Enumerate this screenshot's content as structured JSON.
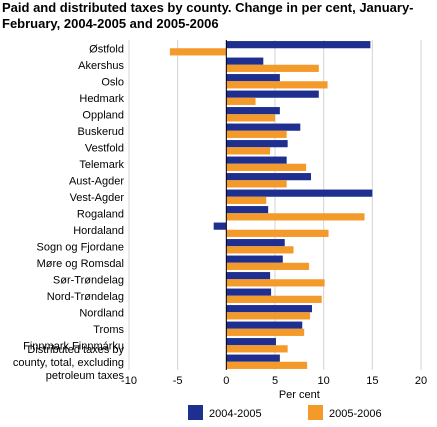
{
  "chart_data": {
    "type": "bar",
    "orientation": "horizontal",
    "title": "Paid and distributed taxes by county. Change in per cent, January-February, 2004-2005 and 2005-2006",
    "xlabel": "Per cent",
    "ylabel": "",
    "xlim": [
      -10,
      20
    ],
    "xticks": [
      -10,
      -5,
      0,
      5,
      10,
      15,
      20
    ],
    "grid": true,
    "legend_position": "bottom",
    "categories": [
      "Østfold",
      "Akershus",
      "Oslo",
      "Hedmark",
      "Oppland",
      "Buskerud",
      "Vestfold",
      "Telemark",
      "Aust-Agder",
      "Vest-Agder",
      "Rogaland",
      "Hordaland",
      "Sogn og Fjordane",
      "Møre og Romsdal",
      "Sør-Trøndelag",
      "Nord-Trøndelag",
      "Nordland",
      "Troms",
      "Finnmark Finnmárku",
      [
        "Distributed taxes by",
        "county, total, excluding",
        "petroleum taxes"
      ]
    ],
    "series": [
      {
        "name": "2004-2005",
        "color": "#1f2f8f",
        "values": [
          14.8,
          3.8,
          5.5,
          9.5,
          5.5,
          7.6,
          6.3,
          6.2,
          8.7,
          15.0,
          4.3,
          -1.3,
          6.0,
          5.8,
          4.5,
          4.6,
          8.8,
          7.8,
          5.1,
          5.5
        ]
      },
      {
        "name": "2005-2006",
        "color": "#f39a2a",
        "values": [
          -5.8,
          9.5,
          10.4,
          3.0,
          5.0,
          6.2,
          4.5,
          8.2,
          6.2,
          4.1,
          14.2,
          10.5,
          6.9,
          8.5,
          10.1,
          9.8,
          8.6,
          8.0,
          6.3,
          8.3
        ]
      }
    ]
  }
}
